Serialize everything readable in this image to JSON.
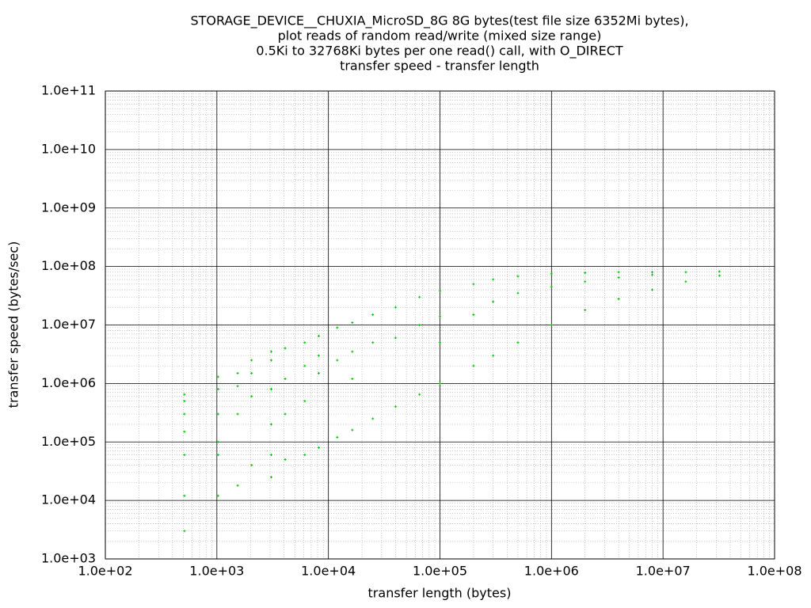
{
  "chart_data": {
    "type": "scatter",
    "title": [
      "STORAGE_DEVICE__CHUXIA_MicroSD_8G 8G bytes(test file size 6352Mi bytes),",
      "plot reads of random read/write (mixed size range)",
      "0.5Ki to 32768Ki bytes per one read() call, with O_DIRECT",
      "transfer speed - transfer length"
    ],
    "x_label": "transfer length (bytes)",
    "y_label": "transfer speed (bytes/sec)",
    "xscale": "log",
    "yscale": "log",
    "grid": true,
    "color": "#00c000",
    "xlim": [
      100,
      100000000
    ],
    "ylim": [
      1000,
      100000000000
    ],
    "xticks": [
      {
        "value": 100,
        "label": "1.0e+02"
      },
      {
        "value": 1000,
        "label": "1.0e+03"
      },
      {
        "value": 10000,
        "label": "1.0e+04"
      },
      {
        "value": 100000,
        "label": "1.0e+05"
      },
      {
        "value": 1000000,
        "label": "1.0e+06"
      },
      {
        "value": 10000000,
        "label": "1.0e+07"
      },
      {
        "value": 100000000,
        "label": "1.0e+08"
      }
    ],
    "yticks": [
      {
        "value": 1000,
        "label": "1.0e+03"
      },
      {
        "value": 10000,
        "label": "1.0e+04"
      },
      {
        "value": 100000,
        "label": "1.0e+05"
      },
      {
        "value": 1000000,
        "label": "1.0e+06"
      },
      {
        "value": 10000000,
        "label": "1.0e+07"
      },
      {
        "value": 100000000,
        "label": "1.0e+08"
      },
      {
        "value": 1000000000,
        "label": "1.0e+09"
      },
      {
        "value": 10000000000,
        "label": "1.0e+10"
      },
      {
        "value": 100000000000,
        "label": "1.0e+11"
      }
    ],
    "x": [
      512,
      512,
      512,
      512,
      512,
      512,
      512,
      1024,
      1024,
      1024,
      1024,
      1024,
      1024,
      1536,
      1536,
      1536,
      1536,
      2048,
      2048,
      2048,
      2048,
      3072,
      3072,
      3072,
      3072,
      3072,
      3072,
      4096,
      4096,
      4096,
      4096,
      6144,
      6144,
      6144,
      6144,
      8192,
      8192,
      8192,
      8192,
      12000,
      12000,
      12000,
      16384,
      16384,
      16384,
      16384,
      25000,
      25000,
      25000,
      40000,
      40000,
      40000,
      65536,
      65536,
      65536,
      100000,
      100000,
      100000,
      100000,
      200000,
      200000,
      200000,
      300000,
      300000,
      300000,
      500000,
      500000,
      500000,
      1000000,
      1000000,
      1000000,
      2000000,
      2000000,
      2000000,
      4000000,
      4000000,
      4000000,
      8000000,
      8000000,
      8000000,
      16000000,
      16000000,
      32000000,
      32000000
    ],
    "values": [
      3000,
      12000,
      60000,
      150000,
      300000,
      500000,
      650000,
      12000,
      60000,
      100000,
      300000,
      800000,
      1300000,
      18000,
      300000,
      900000,
      1500000,
      40000,
      600000,
      1500000,
      2500000,
      25000,
      60000,
      200000,
      800000,
      2500000,
      3500000,
      50000,
      300000,
      1200000,
      4000000,
      60000,
      500000,
      2000000,
      5000000,
      80000,
      1500000,
      3000000,
      6500000,
      120000,
      2500000,
      9000000,
      160000,
      1200000,
      3500000,
      11000000,
      250000,
      5000000,
      15000000,
      400000,
      6000000,
      20000000,
      650000,
      10000000,
      30000000,
      1000000,
      5000000,
      14000000,
      38000000,
      2000000,
      15000000,
      50000000,
      3000000,
      25000000,
      60000000,
      5000000,
      35000000,
      68000000,
      10000000,
      45000000,
      75000000,
      18000000,
      55000000,
      78000000,
      28000000,
      65000000,
      80000000,
      40000000,
      72000000,
      80000000,
      55000000,
      80000000,
      70000000,
      82000000
    ]
  }
}
